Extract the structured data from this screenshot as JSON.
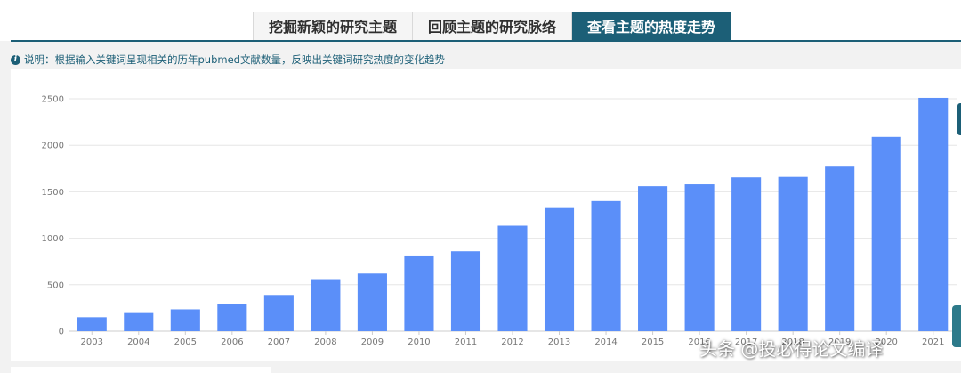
{
  "tabs": [
    {
      "label": "挖掘新颖的研究主题",
      "active": false
    },
    {
      "label": "回顾主题的研究脉络",
      "active": false
    },
    {
      "label": "查看主题的热度走势",
      "active": true
    }
  ],
  "note": {
    "icon": "info-icon",
    "text": "说明：根据输入关键词呈现相关的历年pubmed文献数量，反映出关键词研究热度的变化趋势"
  },
  "watermark": "头条 @投必得论文编译",
  "colors": {
    "accent": "#1c5f77",
    "bar": "#5b8ff9",
    "grid": "#e6e6e6"
  },
  "chart_data": {
    "type": "bar",
    "categories": [
      "2003",
      "2004",
      "2005",
      "2006",
      "2007",
      "2008",
      "2009",
      "2010",
      "2011",
      "2012",
      "2013",
      "2014",
      "2015",
      "2016",
      "2017",
      "2018",
      "2019",
      "2020",
      "2021"
    ],
    "values": [
      150,
      195,
      235,
      295,
      390,
      560,
      620,
      805,
      860,
      1135,
      1325,
      1400,
      1560,
      1580,
      1655,
      1660,
      1770,
      2090,
      2510
    ],
    "ylim": [
      0,
      2500
    ],
    "yticks": [
      0,
      500,
      1000,
      1500,
      2000,
      2500
    ],
    "grid": true,
    "title": "",
    "xlabel": "",
    "ylabel": ""
  }
}
